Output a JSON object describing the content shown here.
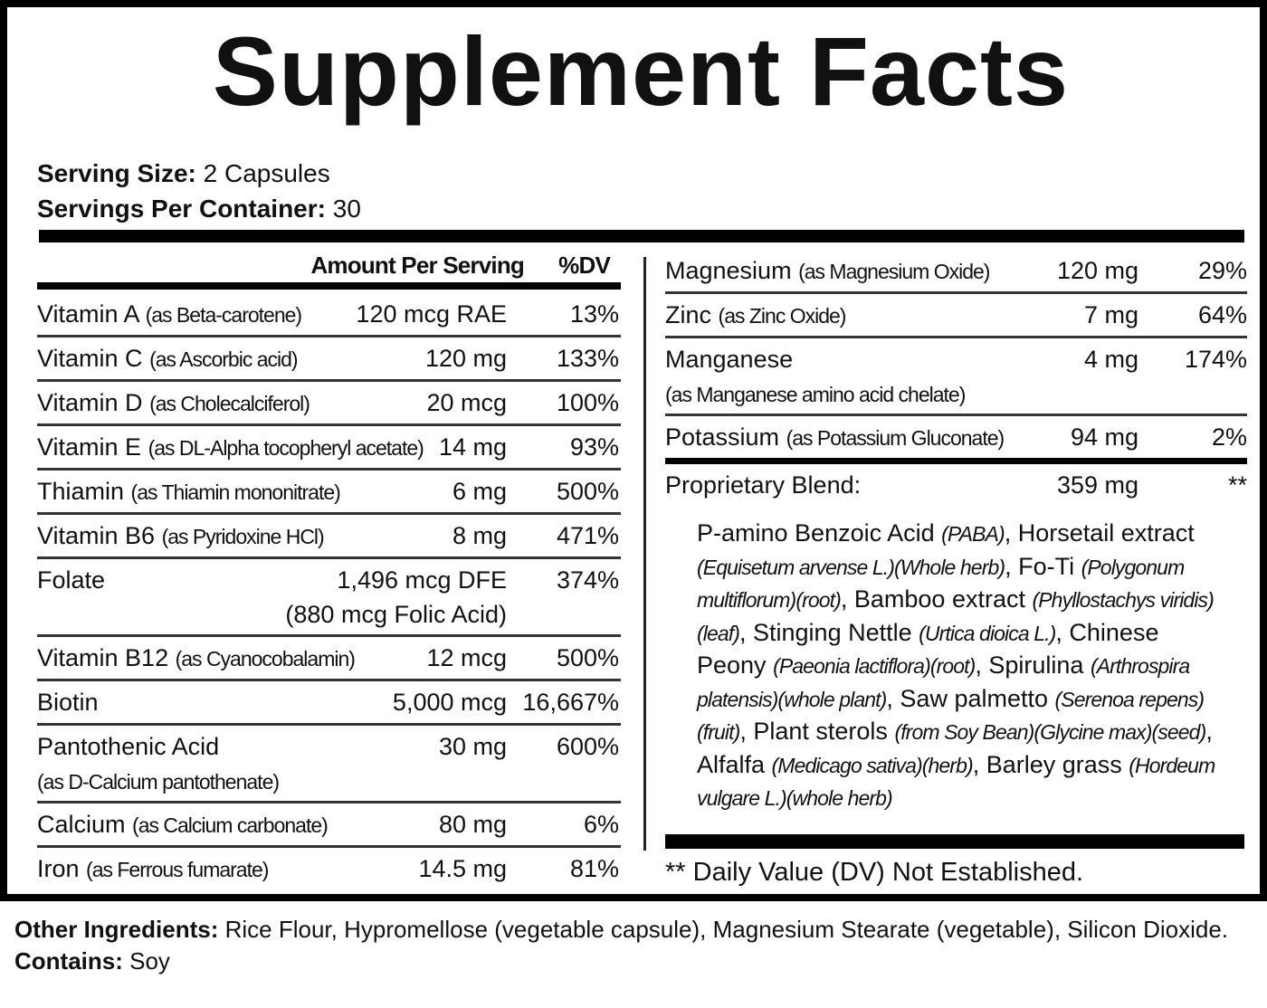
{
  "title": "Supplement Facts",
  "serving": {
    "size_label": "Serving Size:",
    "size_value": "2 Capsules",
    "per_label": "Servings Per Container:",
    "per_value": "30"
  },
  "left_table": {
    "header": {
      "amount": "Amount Per Serving",
      "dv": "%DV"
    },
    "rows": [
      {
        "name": "Vitamin A",
        "detail": "(as Beta-carotene)",
        "amount": "120 mcg RAE",
        "dv": "13%"
      },
      {
        "name": "Vitamin C",
        "detail": "(as Ascorbic acid)",
        "amount": "120 mg",
        "dv": "133%"
      },
      {
        "name": "Vitamin D",
        "detail": "(as Cholecalciferol)",
        "amount": "20 mcg",
        "dv": "100%"
      },
      {
        "name": "Vitamin E",
        "detail": "(as DL-Alpha tocopheryl acetate)",
        "amount": "14 mg",
        "dv": "93%"
      },
      {
        "name": "Thiamin",
        "detail": "(as Thiamin mononitrate)",
        "amount": "6 mg",
        "dv": "500%"
      },
      {
        "name": "Vitamin B6",
        "detail": "(as Pyridoxine HCl)",
        "amount": "8 mg",
        "dv": "471%"
      },
      {
        "name": "Folate",
        "amount": "1,496 mcg DFE",
        "amount_note": "(880 mcg Folic Acid)",
        "dv": "374%"
      },
      {
        "name": "Vitamin B12",
        "detail": "(as Cyanocobalamin)",
        "amount": "12 mcg",
        "dv": "500%"
      },
      {
        "name": "Biotin",
        "amount": "5,000 mcg",
        "dv": "16,667%"
      },
      {
        "name": "Pantothenic Acid",
        "subtext": "(as  D-Calcium pantothenate)",
        "amount": "30 mg",
        "dv": "600%"
      },
      {
        "name": "Calcium",
        "detail": "(as Calcium carbonate)",
        "amount": "80 mg",
        "dv": "6%"
      },
      {
        "name": "Iron",
        "detail": "(as Ferrous fumarate)",
        "amount": "14.5 mg",
        "dv": "81%"
      }
    ]
  },
  "right_table": {
    "rows": [
      {
        "name": "Magnesium",
        "detail": "(as Magnesium Oxide)",
        "amount": "120 mg",
        "dv": "29%"
      },
      {
        "name": "Zinc",
        "detail": "(as Zinc Oxide)",
        "amount": "7 mg",
        "dv": "64%"
      },
      {
        "name": "Manganese",
        "subtext": "(as Manganese amino acid chelate)",
        "amount": "4 mg",
        "dv": "174%"
      },
      {
        "name": "Potassium",
        "detail": "(as Potassium Gluconate)",
        "amount": "94 mg",
        "dv": "2%"
      },
      {
        "name": "Proprietary Blend:",
        "amount": "359 mg",
        "dv": "**"
      }
    ],
    "blend_ingredients": [
      {
        "text": "P-amino Benzoic Acid ",
        "italic": false
      },
      {
        "text": "(PABA)",
        "italic": true
      },
      {
        "text": ", Horsetail extract ",
        "italic": false
      },
      {
        "text": "(Equisetum arvense L.)(Whole herb)",
        "italic": true
      },
      {
        "text": ", Fo-Ti ",
        "italic": false
      },
      {
        "text": "(Polygonum multiflorum)(root)",
        "italic": true
      },
      {
        "text": ", Bamboo extract ",
        "italic": false
      },
      {
        "text": "(Phyllostachys viridis)(leaf)",
        "italic": true
      },
      {
        "text": ", Stinging Nettle ",
        "italic": false
      },
      {
        "text": "(Urtica dioica L.)",
        "italic": true
      },
      {
        "text": ", Chinese Peony ",
        "italic": false
      },
      {
        "text": "(Paeonia lactiflora)(root)",
        "italic": true
      },
      {
        "text": ", Spirulina ",
        "italic": false
      },
      {
        "text": "(Arthrospira platensis)(whole plant)",
        "italic": true
      },
      {
        "text": ", Saw palmetto ",
        "italic": false
      },
      {
        "text": "(Serenoa repens)(fruit)",
        "italic": true
      },
      {
        "text": ", Plant sterols ",
        "italic": false
      },
      {
        "text": "(from Soy Bean)(Glycine max)(seed)",
        "italic": true
      },
      {
        "text": ", Alfalfa ",
        "italic": false
      },
      {
        "text": "(Medicago sativa)(herb)",
        "italic": true
      },
      {
        "text": ", Barley grass ",
        "italic": false
      },
      {
        "text": "(Hordeum vulgare L.)(whole herb)",
        "italic": true
      }
    ],
    "footnote": "** Daily Value (DV) Not Established."
  },
  "other": {
    "ingredients_label": "Other Ingredients:",
    "ingredients_text": "Rice Flour, Hypromellose (vegetable capsule), Magnesium Stearate (vegetable), Silicon Dioxide.",
    "contains_label": "Contains:",
    "contains_text": "Soy"
  }
}
